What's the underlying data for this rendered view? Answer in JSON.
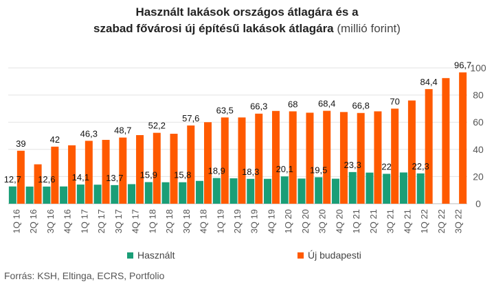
{
  "title": {
    "line1": "Használt lakások országos átlagára és a",
    "line2_bold": "szabad fővárosi új építésű lakások átlagára",
    "line2_unit": " (millió forint)"
  },
  "legend": {
    "series0": "Használt",
    "series1": "Új budapesti"
  },
  "source": "Forrás: KSH, Eltinga, ECRS, Portfolio",
  "chart_data": {
    "type": "bar",
    "categories": [
      "1Q 16",
      "2Q 16",
      "3Q 16",
      "4Q 16",
      "1Q 17",
      "2Q 17",
      "3Q 17",
      "4Q 17",
      "1Q 18",
      "2Q 18",
      "3Q 18",
      "4Q 18",
      "1Q 19",
      "2Q 19",
      "3Q 19",
      "4Q 19",
      "1Q 20",
      "2Q 20",
      "3Q 20",
      "4Q 20",
      "1Q 21",
      "2Q 21",
      "3Q 21",
      "4Q 21",
      "1Q 22",
      "2Q 22",
      "3Q 22"
    ],
    "series": [
      {
        "name": "Használt",
        "color": "#1a9e77",
        "values": [
          12.7,
          12.6,
          12.6,
          12.7,
          14.1,
          14.0,
          13.7,
          14.4,
          15.9,
          15.8,
          15.8,
          16.8,
          18.9,
          18.7,
          18.3,
          18.3,
          20.1,
          18.5,
          19.5,
          18.4,
          23.3,
          22.9,
          22.0,
          23.0,
          22.3,
          null,
          null
        ]
      },
      {
        "name": "Új budapesti",
        "color": "#ff5a00",
        "values": [
          39.0,
          29.0,
          42.0,
          43.0,
          46.3,
          47.0,
          48.7,
          50.5,
          52.2,
          51.5,
          57.6,
          60.0,
          63.5,
          63.5,
          66.3,
          68.3,
          68.0,
          67.0,
          68.4,
          67.5,
          66.8,
          68.0,
          70.0,
          76.0,
          84.4,
          92.5,
          96.7
        ]
      }
    ],
    "data_labels": {
      "s0_indices": [
        0,
        2,
        4,
        6,
        8,
        10,
        12,
        14,
        16,
        18,
        20,
        22,
        24
      ],
      "s1_indices": [
        0,
        2,
        4,
        6,
        8,
        10,
        12,
        14,
        16,
        18,
        20,
        22,
        24,
        26
      ],
      "s0_text": [
        "12,7",
        "12,6",
        "14,1",
        "13,7",
        "15,9",
        "15,8",
        "18,9",
        "18,3",
        "20,1",
        "19,5",
        "23,3",
        "22",
        "22,3"
      ],
      "s1_text": [
        "39",
        "42",
        "46,3",
        "48,7",
        "52,2",
        "57,6",
        "63,5",
        "66,3",
        "68",
        "68,4",
        "66,8",
        "70",
        "84,4",
        "96,7"
      ]
    },
    "y_ticks": [
      "0",
      "20",
      "40",
      "60",
      "80",
      "100"
    ],
    "ylim": [
      0,
      100
    ],
    "y_axis_side": "right",
    "grid": true,
    "legend_position": "bottom"
  }
}
